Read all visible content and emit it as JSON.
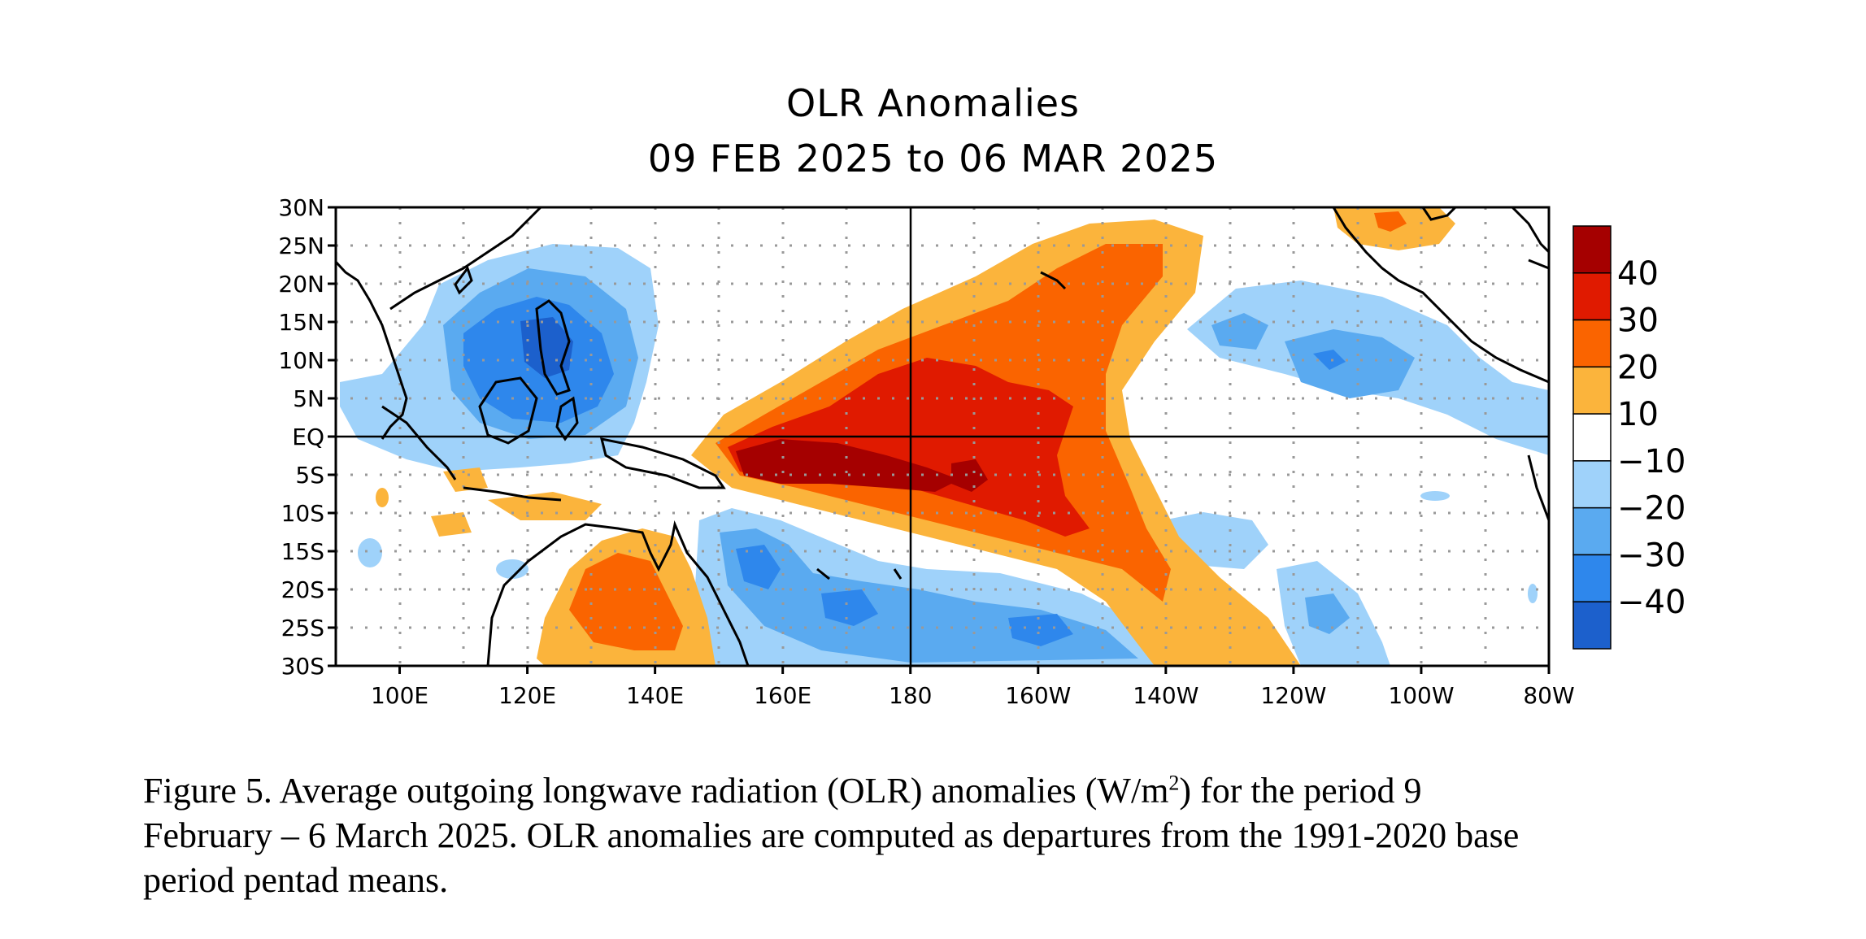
{
  "title": {
    "line1": "OLR Anomalies",
    "line2": "09 FEB 2025 to 06 MAR 2025"
  },
  "map": {
    "lon_range": [
      90,
      280
    ],
    "lat_range": [
      -30,
      30
    ],
    "lat_labels": [
      "30N",
      "25N",
      "20N",
      "15N",
      "10N",
      "5N",
      "EQ",
      "5S",
      "10S",
      "15S",
      "20S",
      "25S",
      "30S"
    ],
    "lon_labels": [
      "100E",
      "120E",
      "140E",
      "160E",
      "180",
      "160W",
      "140W",
      "120W",
      "100W",
      "80W"
    ],
    "reference_lines": [
      "Equator",
      "180"
    ]
  },
  "colorbar": {
    "labels": [
      "40",
      "30",
      "20",
      "10",
      "−10",
      "−20",
      "−30",
      "−40"
    ],
    "colors": [
      "#a50000",
      "#e01a00",
      "#fa6400",
      "#fbb43c",
      "#ffffff",
      "#9fd2fa",
      "#5aaaf0",
      "#2e87ec",
      "#1c60cc"
    ]
  },
  "caption": {
    "part1": "Figure 5. Average outgoing longwave radiation (OLR) anomalies (W/m",
    "sup": "2",
    "part2": ") for the period 9",
    "line2": "February – 6 March 2025.  OLR anomalies are computed as departures from the 1991-2020 base",
    "line3": "period pentad means."
  }
}
